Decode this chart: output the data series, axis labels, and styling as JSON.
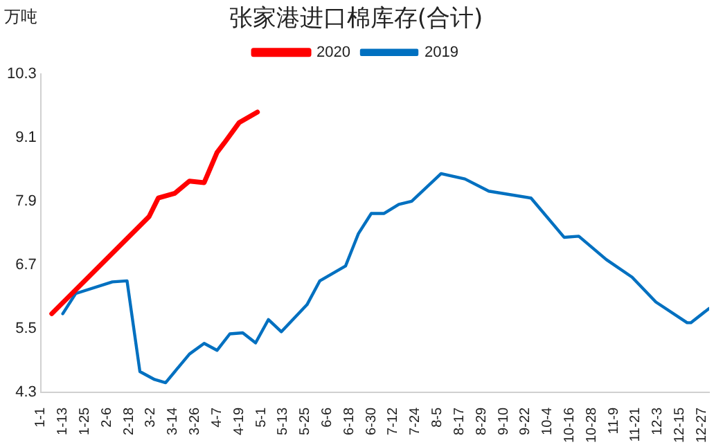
{
  "chart_data": {
    "type": "line",
    "title": "张家港进口棉库存(合计)",
    "ylabel": "万吨",
    "ylim": [
      4.3,
      10.3
    ],
    "yticks": [
      4.3,
      5.5,
      6.7,
      7.9,
      9.1,
      10.3
    ],
    "xlim": [
      "--01-01",
      "--12-31"
    ],
    "xticks": [
      {
        "value": "--01-01",
        "label": "1-1"
      },
      {
        "value": "--01-13",
        "label": "1-13"
      },
      {
        "value": "--01-25",
        "label": "1-25"
      },
      {
        "value": "--02-06",
        "label": "2-6"
      },
      {
        "value": "--02-18",
        "label": "2-18"
      },
      {
        "value": "--03-02",
        "label": "3-2"
      },
      {
        "value": "--03-14",
        "label": "3-14"
      },
      {
        "value": "--03-26",
        "label": "3-26"
      },
      {
        "value": "--04-07",
        "label": "4-7"
      },
      {
        "value": "--04-19",
        "label": "4-19"
      },
      {
        "value": "--05-01",
        "label": "5-1"
      },
      {
        "value": "--05-13",
        "label": "5-13"
      },
      {
        "value": "--05-25",
        "label": "5-25"
      },
      {
        "value": "--06-06",
        "label": "6-6"
      },
      {
        "value": "--06-18",
        "label": "6-18"
      },
      {
        "value": "--06-30",
        "label": "6-30"
      },
      {
        "value": "--07-12",
        "label": "7-12"
      },
      {
        "value": "--07-24",
        "label": "7-24"
      },
      {
        "value": "--08-05",
        "label": "8-5"
      },
      {
        "value": "--08-17",
        "label": "8-17"
      },
      {
        "value": "--08-29",
        "label": "8-29"
      },
      {
        "value": "--09-10",
        "label": "9-10"
      },
      {
        "value": "--09-22",
        "label": "9-22"
      },
      {
        "value": "--10-04",
        "label": "10-4"
      },
      {
        "value": "--10-16",
        "label": "10-16"
      },
      {
        "value": "--10-28",
        "label": "10-28"
      },
      {
        "value": "--11-09",
        "label": "11-9"
      },
      {
        "value": "--11-21",
        "label": "11-21"
      },
      {
        "value": "--12-03",
        "label": "12-3"
      },
      {
        "value": "--12-15",
        "label": "12-15"
      },
      {
        "value": "--12-27",
        "label": "12-27"
      }
    ],
    "grid": false,
    "legend": "top",
    "marker": "none",
    "line_style": "solid",
    "series": [
      {
        "name": "2020",
        "color": "#ff0000",
        "x": [
          "--01-07",
          "--03-01",
          "--03-06",
          "--03-15",
          "--03-23",
          "--03-31",
          "--04-07",
          "--04-11",
          "--04-19",
          "--04-29"
        ],
        "values": [
          5.78,
          7.61,
          7.96,
          8.05,
          8.28,
          8.25,
          8.82,
          9.0,
          9.38,
          9.58
        ]
      },
      {
        "name": "2019",
        "color": "#0070c0",
        "x": [
          "--01-13",
          "--01-20",
          "--02-09",
          "--02-17",
          "--02-24",
          "--03-04",
          "--03-10",
          "--03-23",
          "--03-31",
          "--04-07",
          "--04-14",
          "--04-21",
          "--04-28",
          "--05-05",
          "--05-12",
          "--05-26",
          "--06-02",
          "--06-16",
          "--06-23",
          "--06-30",
          "--07-07",
          "--07-15",
          "--07-22",
          "--08-07",
          "--08-20",
          "--09-02",
          "--09-25",
          "--10-13",
          "--10-21",
          "--11-05",
          "--11-19",
          "--12-02",
          "--12-19",
          "--12-21",
          "--12-31"
        ],
        "values": [
          5.78,
          6.16,
          6.38,
          6.4,
          4.69,
          4.54,
          4.48,
          5.02,
          5.22,
          5.09,
          5.4,
          5.42,
          5.23,
          5.67,
          5.44,
          5.95,
          6.4,
          6.68,
          7.29,
          7.67,
          7.67,
          7.84,
          7.9,
          8.42,
          8.32,
          8.09,
          7.96,
          7.22,
          7.24,
          6.8,
          6.47,
          6.0,
          5.61,
          5.61,
          5.88
        ]
      }
    ]
  }
}
